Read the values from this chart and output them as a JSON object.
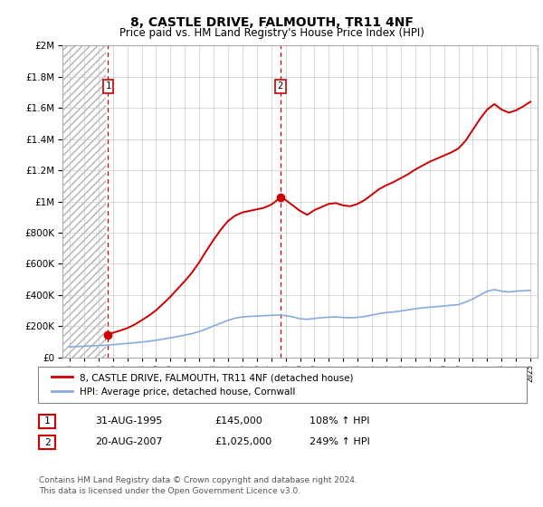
{
  "title": "8, CASTLE DRIVE, FALMOUTH, TR11 4NF",
  "subtitle": "Price paid vs. HM Land Registry's House Price Index (HPI)",
  "title_fontsize": 10,
  "subtitle_fontsize": 8.5,
  "background_color": "#ffffff",
  "plot_bg_color": "#ffffff",
  "grid_color": "#cccccc",
  "ylim": [
    0,
    2000000
  ],
  "xlim_start": 1992.5,
  "xlim_end": 2025.5,
  "sale1_x": 1995.667,
  "sale1_y": 145000,
  "sale2_x": 2007.639,
  "sale2_y": 1025000,
  "legend_label1": "8, CASTLE DRIVE, FALMOUTH, TR11 4NF (detached house)",
  "legend_label2": "HPI: Average price, detached house, Cornwall",
  "table_row1": [
    "1",
    "31-AUG-1995",
    "£145,000",
    "108% ↑ HPI"
  ],
  "table_row2": [
    "2",
    "20-AUG-2007",
    "£1,025,000",
    "249% ↑ HPI"
  ],
  "footer": "Contains HM Land Registry data © Crown copyright and database right 2024.\nThis data is licensed under the Open Government Licence v3.0.",
  "red_line_color": "#cc0000",
  "blue_line_color": "#88aadd",
  "hatch_end_year": 1995.5,
  "hpi_data_x": [
    1993.0,
    1993.5,
    1994.0,
    1994.5,
    1995.0,
    1995.5,
    1996.0,
    1996.5,
    1997.0,
    1997.5,
    1998.0,
    1998.5,
    1999.0,
    1999.5,
    2000.0,
    2000.5,
    2001.0,
    2001.5,
    2002.0,
    2002.5,
    2003.0,
    2003.5,
    2004.0,
    2004.5,
    2005.0,
    2005.5,
    2006.0,
    2006.5,
    2007.0,
    2007.5,
    2008.0,
    2008.5,
    2009.0,
    2009.5,
    2010.0,
    2010.5,
    2011.0,
    2011.5,
    2012.0,
    2012.5,
    2013.0,
    2013.5,
    2014.0,
    2014.5,
    2015.0,
    2015.5,
    2016.0,
    2016.5,
    2017.0,
    2017.5,
    2018.0,
    2018.5,
    2019.0,
    2019.5,
    2020.0,
    2020.5,
    2021.0,
    2021.5,
    2022.0,
    2022.5,
    2023.0,
    2023.5,
    2024.0,
    2024.5,
    2025.0
  ],
  "hpi_data_y": [
    68000,
    70000,
    72000,
    74000,
    76000,
    78000,
    82000,
    86000,
    90000,
    94000,
    99000,
    104000,
    110000,
    118000,
    126000,
    134000,
    143000,
    153000,
    166000,
    183000,
    202000,
    220000,
    238000,
    252000,
    260000,
    263000,
    265000,
    268000,
    270000,
    272000,
    268000,
    260000,
    248000,
    245000,
    250000,
    255000,
    258000,
    260000,
    256000,
    254000,
    257000,
    263000,
    272000,
    281000,
    288000,
    292000,
    298000,
    305000,
    312000,
    318000,
    322000,
    326000,
    330000,
    335000,
    338000,
    355000,
    375000,
    400000,
    425000,
    435000,
    425000,
    420000,
    425000,
    428000,
    430000
  ],
  "price_data_x": [
    1995.667,
    1996.0,
    1996.5,
    1997.0,
    1997.5,
    1998.0,
    1998.5,
    1999.0,
    1999.5,
    2000.0,
    2000.5,
    2001.0,
    2001.5,
    2002.0,
    2002.5,
    2003.0,
    2003.5,
    2004.0,
    2004.5,
    2005.0,
    2005.5,
    2006.0,
    2006.5,
    2007.0,
    2007.5,
    2007.639,
    2008.0,
    2008.5,
    2009.0,
    2009.5,
    2010.0,
    2010.5,
    2011.0,
    2011.5,
    2012.0,
    2012.5,
    2013.0,
    2013.5,
    2014.0,
    2014.5,
    2015.0,
    2015.5,
    2016.0,
    2016.5,
    2017.0,
    2017.5,
    2018.0,
    2018.5,
    2019.0,
    2019.5,
    2020.0,
    2020.5,
    2021.0,
    2021.5,
    2022.0,
    2022.5,
    2023.0,
    2023.5,
    2024.0,
    2024.5,
    2025.0
  ],
  "price_data_y": [
    145000,
    158000,
    172000,
    188000,
    210000,
    238000,
    268000,
    302000,
    345000,
    390000,
    440000,
    490000,
    545000,
    610000,
    685000,
    755000,
    820000,
    875000,
    910000,
    930000,
    940000,
    950000,
    960000,
    980000,
    1015000,
    1025000,
    1010000,
    975000,
    940000,
    915000,
    945000,
    965000,
    985000,
    990000,
    975000,
    970000,
    985000,
    1010000,
    1045000,
    1080000,
    1105000,
    1125000,
    1150000,
    1175000,
    1205000,
    1230000,
    1255000,
    1275000,
    1295000,
    1315000,
    1340000,
    1390000,
    1460000,
    1530000,
    1590000,
    1625000,
    1590000,
    1570000,
    1585000,
    1610000,
    1640000
  ]
}
